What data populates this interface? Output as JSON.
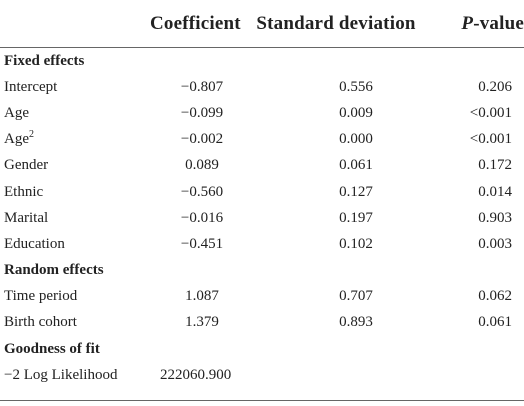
{
  "header": {
    "coefficient": "Coefficient",
    "standard_deviation": "Standard deviation",
    "p_value_italic": "P",
    "p_value_rest": "-value"
  },
  "fixed_effects": {
    "label": "Fixed effects",
    "rows": [
      {
        "name": "Intercept",
        "coefficient": "−0.807",
        "sd": "0.556",
        "p": "0.206"
      },
      {
        "name": "Age",
        "coefficient": "−0.099",
        "sd": "0.009",
        "p": "<0.001"
      },
      {
        "name": "Age",
        "sup": "2",
        "coefficient": "−0.002",
        "sd": "0.000",
        "p": "<0.001"
      },
      {
        "name": "Gender",
        "coefficient": "0.089",
        "sd": "0.061",
        "p": "0.172"
      },
      {
        "name": "Ethnic",
        "coefficient": "−0.560",
        "sd": "0.127",
        "p": "0.014"
      },
      {
        "name": "Marital",
        "coefficient": "−0.016",
        "sd": "0.197",
        "p": "0.903"
      },
      {
        "name": "Education",
        "coefficient": "−0.451",
        "sd": "0.102",
        "p": "0.003"
      }
    ]
  },
  "random_effects": {
    "label": "Random effects",
    "rows": [
      {
        "name": "Time period",
        "coefficient": "1.087",
        "sd": "0.707",
        "p": "0.062"
      },
      {
        "name": "Birth cohort",
        "coefficient": "1.379",
        "sd": "0.893",
        "p": "0.061"
      }
    ]
  },
  "goodness_of_fit": {
    "label": "Goodness of fit",
    "row": {
      "name": "−2 Log Likelihood",
      "value": "222060.900"
    }
  }
}
